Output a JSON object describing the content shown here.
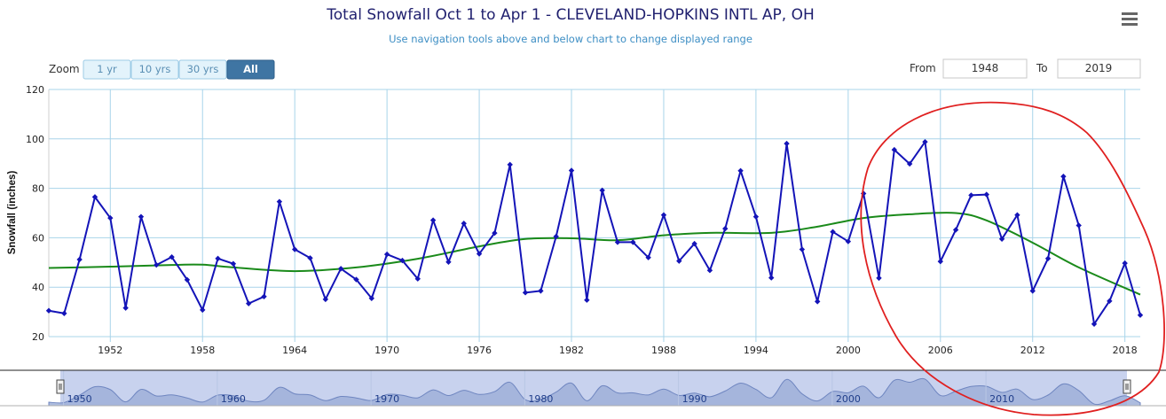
{
  "header": {
    "title": "Total Snowfall Oct 1 to Apr 1 - CLEVELAND-HOPKINS INTL AP, OH",
    "subtitle": "Use navigation tools above and below chart to change displayed range",
    "menu_icon": "hamburger-menu-icon"
  },
  "zoom": {
    "label": "Zoom",
    "buttons": [
      "1 yr",
      "10 yrs",
      "30 yrs",
      "All"
    ],
    "selected": "All"
  },
  "range": {
    "from_label": "From",
    "from_value": "1948",
    "to_label": "To",
    "to_value": "2019"
  },
  "colors": {
    "series": "#1414b8",
    "trend": "#1a8a1a",
    "grid": "#a8d4ea",
    "annotation": "#e02020",
    "navigator_fill": "#9fb0d8",
    "navigator_selection": "#c8d2ee"
  },
  "chart_data": {
    "type": "line",
    "title": "Total Snowfall Oct 1 to Apr 1 - CLEVELAND-HOPKINS INTL AP, OH",
    "xlabel": "",
    "ylabel": "Snowfall (inches)",
    "xlim": [
      1948,
      2019
    ],
    "ylim": [
      20,
      120
    ],
    "x_ticks": [
      1952,
      1958,
      1964,
      1970,
      1976,
      1982,
      1988,
      1994,
      2000,
      2006,
      2012,
      2018
    ],
    "y_ticks": [
      20,
      40,
      60,
      80,
      100,
      120
    ],
    "grid": true,
    "series": [
      {
        "name": "",
        "x": [
          1948,
          1949,
          1950,
          1951,
          1952,
          1953,
          1954,
          1955,
          1956,
          1957,
          1958,
          1959,
          1960,
          1961,
          1962,
          1963,
          1964,
          1965,
          1966,
          1967,
          1968,
          1969,
          1970,
          1971,
          1972,
          1973,
          1974,
          1975,
          1976,
          1977,
          1978,
          1979,
          1980,
          1981,
          1982,
          1983,
          1984,
          1985,
          1986,
          1987,
          1988,
          1989,
          1990,
          1991,
          1992,
          1993,
          1994,
          1995,
          1996,
          1997,
          1998,
          1999,
          2000,
          2001,
          2002,
          2003,
          2004,
          2005,
          2006,
          2007,
          2008,
          2009,
          2010,
          2011,
          2012,
          2013,
          2014,
          2015,
          2016,
          2017,
          2018,
          2019
        ],
        "y": [
          30.5,
          29.4,
          51.2,
          76.5,
          68,
          31.6,
          68.5,
          49,
          52.2,
          43,
          30.8,
          51.6,
          49.5,
          33.4,
          36.2,
          74.6,
          55.3,
          51.8,
          35.1,
          47.5,
          43.1,
          35.5,
          53.3,
          50.8,
          43.4,
          67.1,
          50.2,
          65.8,
          53.5,
          61.9,
          89.6,
          37.8,
          38.5,
          60.5,
          87.2,
          34.8,
          79.2,
          58.2,
          58.2,
          52,
          69.2,
          50.6,
          57.6,
          46.8,
          63.7,
          87.1,
          68.5,
          43.8,
          98.1,
          55.3,
          34.2,
          62.4,
          58.5,
          77.9,
          43.7,
          95.6,
          89.9,
          98.8,
          50.4,
          63.2,
          77.2,
          77.5,
          59.5,
          69.2,
          38.5,
          51.6,
          84.8,
          65,
          25.1,
          34.4,
          49.7,
          28.7
        ]
      },
      {
        "name": "",
        "type": "smoothed trend",
        "x": [
          1948,
          1952,
          1956,
          1958,
          1960,
          1964,
          1968,
          1972,
          1976,
          1979,
          1982,
          1985,
          1988,
          1991,
          1995,
          1998,
          2001,
          2004,
          2007,
          2009,
          2012,
          2015,
          2019
        ],
        "y": [
          47.8,
          48.3,
          49,
          49.1,
          48,
          46.5,
          48,
          51.5,
          56.5,
          59.5,
          59.8,
          59,
          61,
          62,
          62,
          64.5,
          68,
          69.5,
          70,
          67,
          58,
          48,
          37
        ]
      }
    ],
    "navigator_ticks": [
      1950,
      1960,
      1970,
      1980,
      1990,
      2000,
      2010
    ]
  }
}
